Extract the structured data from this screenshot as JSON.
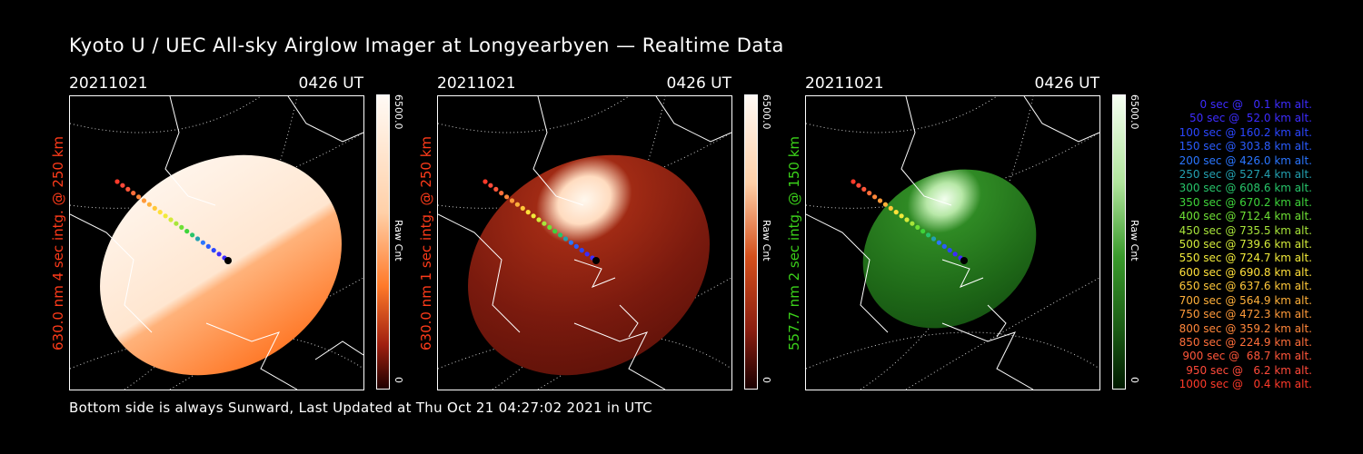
{
  "title": "Kyoto U / UEC All-sky Airglow Imager at Longyearbyen — Realtime Data",
  "footer": "Bottom side is always Sunward, Last Updated at Thu Oct 21 04:27:02 2021 in UTC",
  "panels": [
    {
      "date": "20211021",
      "time": "0426 UT",
      "ylabel": "630.0 nm 4 sec intg. @ 250 km",
      "ylabel_color": "#ff3b1a",
      "cbar_max": "6500.0",
      "cbar_min": "0",
      "cbar_label": "Raw Cnt",
      "palette": "orange-saturated"
    },
    {
      "date": "20211021",
      "time": "0426 UT",
      "ylabel": "630.0 nm 1 sec intg. @ 250 km",
      "ylabel_color": "#ff3b1a",
      "cbar_max": "6500.0",
      "cbar_min": "0",
      "cbar_label": "Raw Cnt",
      "palette": "dark-red"
    },
    {
      "date": "20211021",
      "time": "0426 UT",
      "ylabel": "557.7 nm 2 sec intg. @ 150 km",
      "ylabel_color": "#3bd11a",
      "cbar_max": "6500.0",
      "cbar_min": "0",
      "cbar_label": "Raw Cnt",
      "palette": "green"
    }
  ],
  "legend": [
    {
      "text": "   0 sec @   0.1 km alt.",
      "color": "#3d2cff"
    },
    {
      "text": "  50 sec @  52.0 km alt.",
      "color": "#3d2cff"
    },
    {
      "text": " 100 sec @ 160.2 km alt.",
      "color": "#2a46ff"
    },
    {
      "text": " 150 sec @ 303.8 km alt.",
      "color": "#2a5cff"
    },
    {
      "text": " 200 sec @ 426.0 km alt.",
      "color": "#2a76ff"
    },
    {
      "text": " 250 sec @ 527.4 km alt.",
      "color": "#23a0b0"
    },
    {
      "text": " 300 sec @ 608.6 km alt.",
      "color": "#27c46a"
    },
    {
      "text": " 350 sec @ 670.2 km alt.",
      "color": "#3ed43a"
    },
    {
      "text": " 400 sec @ 712.4 km alt.",
      "color": "#6ee035"
    },
    {
      "text": " 450 sec @ 735.5 km alt.",
      "color": "#a8e53a"
    },
    {
      "text": " 500 sec @ 739.6 km alt.",
      "color": "#d4ea3a"
    },
    {
      "text": " 550 sec @ 724.7 km alt.",
      "color": "#f1ea3a"
    },
    {
      "text": " 600 sec @ 690.8 km alt.",
      "color": "#ffe03a"
    },
    {
      "text": " 650 sec @ 637.6 km alt.",
      "color": "#ffc83a"
    },
    {
      "text": " 700 sec @ 564.9 km alt.",
      "color": "#ffb03a"
    },
    {
      "text": " 750 sec @ 472.3 km alt.",
      "color": "#ff9a3a"
    },
    {
      "text": " 800 sec @ 359.2 km alt.",
      "color": "#ff863a"
    },
    {
      "text": " 850 sec @ 224.9 km alt.",
      "color": "#ff6e3a"
    },
    {
      "text": " 900 sec @  68.7 km alt.",
      "color": "#ff563a"
    },
    {
      "text": " 950 sec @   6.2 km alt.",
      "color": "#ff4a3a"
    },
    {
      "text": "1000 sec @   0.4 km alt.",
      "color": "#ff3a2a"
    }
  ]
}
